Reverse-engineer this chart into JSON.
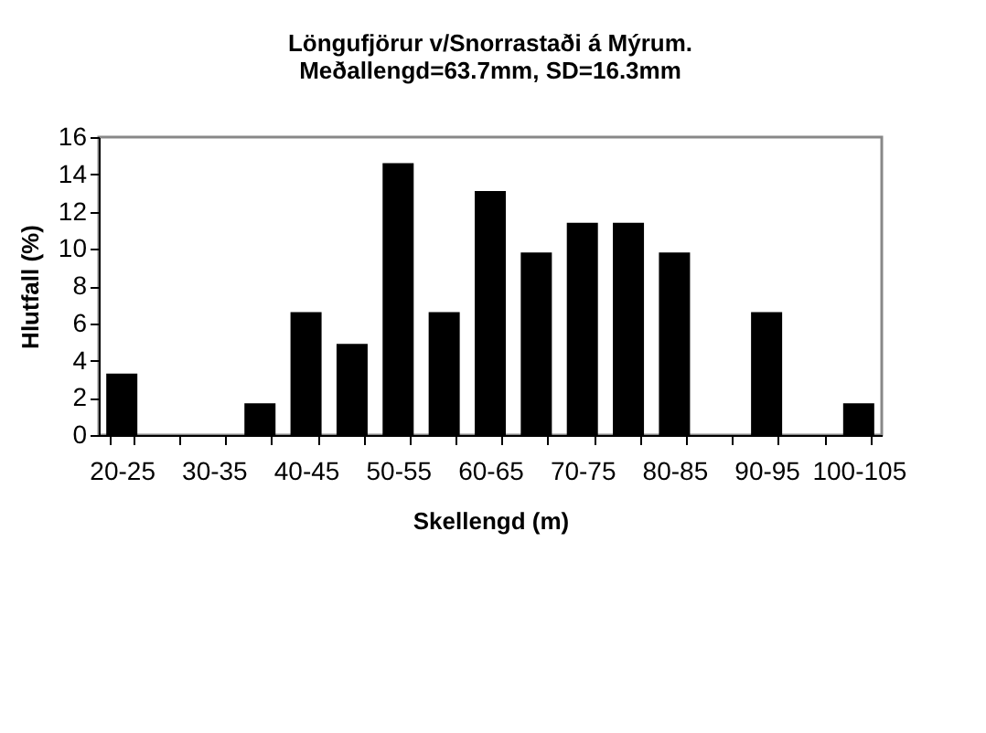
{
  "chart_data": {
    "type": "bar",
    "title": "Löngufjörur v/Snorrastaði á Mýrum.\nMeðallengd=63.7mm, SD=16.3mm",
    "xlabel": "Skellengd (m)",
    "ylabel": "Hlutfall (%)",
    "categories": [
      "20-25",
      null,
      "30-35",
      null,
      "40-45",
      null,
      "50-55",
      null,
      "60-65",
      null,
      "70-75",
      null,
      "80-85",
      null,
      "90-95",
      null,
      "100-105"
    ],
    "values": [
      3.3,
      0,
      0,
      1.7,
      6.6,
      4.9,
      14.6,
      6.6,
      13.1,
      9.8,
      11.4,
      11.4,
      9.8,
      0,
      6.6,
      0,
      1.7
    ],
    "color": "#000000",
    "ylim": [
      0,
      16
    ],
    "yticks": [
      0,
      2,
      4,
      6,
      8,
      10,
      12,
      14,
      16
    ],
    "grid": false
  }
}
